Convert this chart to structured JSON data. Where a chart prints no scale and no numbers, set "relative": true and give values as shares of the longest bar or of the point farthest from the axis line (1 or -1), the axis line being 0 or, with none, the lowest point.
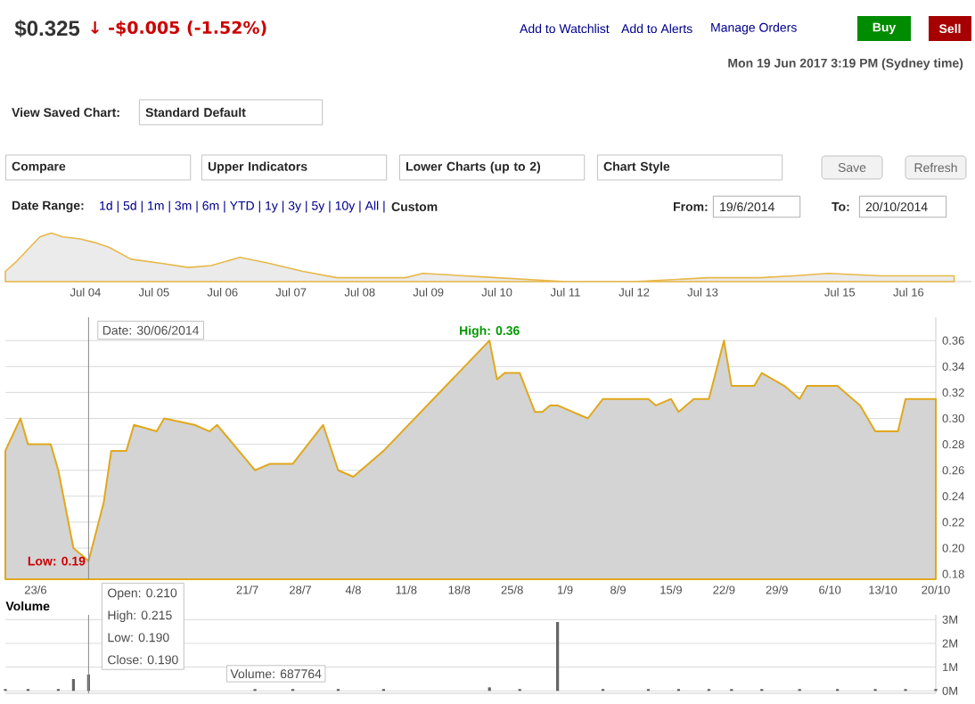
{
  "chart_data": [
    {
      "type": "area",
      "title": "$0.325",
      "subtitle": "↓ -$0.005 (-1.52%)",
      "relative": true,
      "color": "#e8b84a",
      "x": [
        "2003-05",
        "2003-07",
        "2003-11",
        "2004-01",
        "2004-03",
        "2004-06",
        "2004-09",
        "2004-11",
        "2005-03",
        "2005-08",
        "2006-01",
        "2006-05",
        "2006-10",
        "2007-03",
        "2007-09",
        "2008-03",
        "2009-03",
        "2009-06",
        "2010-07",
        "2011-07",
        "2012-07",
        "2013-08",
        "2014-05",
        "2014-11",
        "2015-05",
        "2016-02",
        "2017-03"
      ],
      "values": [
        0.21,
        0.42,
        0.92,
        1,
        0.92,
        0.88,
        0.79,
        0.71,
        0.46,
        0.38,
        0.29,
        0.33,
        0.5,
        0.38,
        0.21,
        0.08,
        0.08,
        0.17,
        0.08,
        0,
        0,
        0.08,
        0.08,
        0.12,
        0.17,
        0.12,
        0.12
      ],
      "xlim": [
        "2003-05",
        "2017-06"
      ],
      "xticks": [
        {
          "value": "2004-07",
          "label": "Jul 04"
        },
        {
          "value": "2005-07",
          "label": "Jul 05"
        },
        {
          "value": "2006-07",
          "label": "Jul 06"
        },
        {
          "value": "2007-07",
          "label": "Jul 07"
        },
        {
          "value": "2008-07",
          "label": "Jul 08"
        },
        {
          "value": "2009-07",
          "label": "Jul 09"
        },
        {
          "value": "2010-07",
          "label": "Jul 10"
        },
        {
          "value": "2011-07",
          "label": "Jul 11"
        },
        {
          "value": "2012-07",
          "label": "Jul 12"
        },
        {
          "value": "2013-07",
          "label": "Jul 13"
        },
        {
          "value": "2015-07",
          "label": "Jul 15"
        },
        {
          "value": "2016-07",
          "label": "Jul 16"
        }
      ],
      "annotations": [
        "Add to Watchlist",
        "Add to Alerts",
        "Manage Orders",
        "Buy",
        "Sell",
        "Mon 19 Jun 2017 3:19 PM (Sydney time)",
        "View Saved Chart:",
        "Standard Default",
        "Compare",
        "Upper Indicators",
        "Lower Charts (up to 2)",
        "Chart Style",
        "Save",
        "Refresh",
        "Date Range:",
        "1d | 5d | 1m | 3m | 6m | YTD | 1y | 3y | 5y | 10y | All |",
        "Custom",
        "From:",
        "19/6/2014",
        "To:",
        "20/10/2014"
      ]
    },
    {
      "type": "area",
      "color": "#e0a81c",
      "grid": "y",
      "x": [
        "2014-06-19",
        "2014-06-21",
        "2014-06-22",
        "2014-06-25",
        "2014-06-26",
        "2014-06-28",
        "2014-06-30",
        "2014-07-02",
        "2014-07-03",
        "2014-07-05",
        "2014-07-06",
        "2014-07-09",
        "2014-07-10",
        "2014-07-14",
        "2014-07-16",
        "2014-07-17",
        "2014-07-22",
        "2014-07-24",
        "2014-07-27",
        "2014-07-31",
        "2014-08-02",
        "2014-08-04",
        "2014-08-08",
        "2014-08-22",
        "2014-08-23",
        "2014-08-24",
        "2014-08-26",
        "2014-08-28",
        "2014-08-29",
        "2014-08-30",
        "2014-08-31",
        "2014-09-04",
        "2014-09-06",
        "2014-09-12",
        "2014-09-13",
        "2014-09-15",
        "2014-09-16",
        "2014-09-18",
        "2014-09-20",
        "2014-09-22",
        "2014-09-23",
        "2014-09-26",
        "2014-09-27",
        "2014-09-30",
        "2014-10-02",
        "2014-10-03",
        "2014-10-07",
        "2014-10-09",
        "2014-10-10",
        "2014-10-12",
        "2014-10-15",
        "2014-10-16",
        "2014-10-20"
      ],
      "values": [
        0.275,
        0.3,
        0.28,
        0.28,
        0.26,
        0.2,
        0.19,
        0.235,
        0.275,
        0.275,
        0.295,
        0.29,
        0.3,
        0.295,
        0.29,
        0.295,
        0.26,
        0.265,
        0.265,
        0.295,
        0.26,
        0.255,
        0.275,
        0.36,
        0.33,
        0.335,
        0.335,
        0.305,
        0.305,
        0.31,
        0.31,
        0.3,
        0.315,
        0.315,
        0.31,
        0.315,
        0.305,
        0.315,
        0.315,
        0.36,
        0.325,
        0.325,
        0.335,
        0.325,
        0.315,
        0.325,
        0.325,
        0.315,
        0.31,
        0.29,
        0.29,
        0.315,
        0.315
      ],
      "xlim": [
        "2014-06-19",
        "2014-10-20"
      ],
      "xticks": [
        {
          "value": "2014-06-23",
          "label": "23/6"
        },
        {
          "value": "2014-06-30",
          "label": null
        },
        {
          "value": "2014-07-21",
          "label": "21/7"
        },
        {
          "value": "2014-07-28",
          "label": "28/7"
        },
        {
          "value": "2014-08-04",
          "label": "4/8"
        },
        {
          "value": "2014-08-11",
          "label": "11/8"
        },
        {
          "value": "2014-08-18",
          "label": "18/8"
        },
        {
          "value": "2014-08-25",
          "label": "25/8"
        },
        {
          "value": "2014-09-01",
          "label": "1/9"
        },
        {
          "value": "2014-09-08",
          "label": "8/9"
        },
        {
          "value": "2014-09-15",
          "label": "15/9"
        },
        {
          "value": "2014-09-22",
          "label": "22/9"
        },
        {
          "value": "2014-09-29",
          "label": "29/9"
        },
        {
          "value": "2014-10-06",
          "label": "6/10"
        },
        {
          "value": "2014-10-13",
          "label": "13/10"
        },
        {
          "value": "2014-10-20",
          "label": "20/10"
        }
      ],
      "ylim": [
        0.176,
        0.378
      ],
      "yticks": [
        {
          "value": 0.18,
          "label": "0.18"
        },
        {
          "value": 0.2,
          "label": "0.20"
        },
        {
          "value": 0.22,
          "label": "0.22"
        },
        {
          "value": 0.24,
          "label": "0.24"
        },
        {
          "value": 0.26,
          "label": "0.26"
        },
        {
          "value": 0.28,
          "label": "0.28"
        },
        {
          "value": 0.3,
          "label": "0.30"
        },
        {
          "value": 0.32,
          "label": "0.32"
        },
        {
          "value": 0.34,
          "label": "0.34"
        },
        {
          "value": 0.36,
          "label": "0.36"
        }
      ],
      "ref_lines": [
        {
          "axis": "x",
          "value": "2014-06-30",
          "color": "#888888"
        }
      ],
      "annotations": [
        {
          "text": "Date: 30/06/2014",
          "x": "2014-06-30"
        },
        {
          "text": "High: 0.36",
          "x": "2014-08-22",
          "y": 0.36
        },
        {
          "text": "Low: 0.19",
          "x": "2014-06-30",
          "y": 0.19
        },
        "Open: 0.210",
        "High: 0.215",
        "Low: 0.190",
        "Close: 0.190"
      ]
    },
    {
      "type": "bar",
      "title": "Volume",
      "color": "#666666",
      "grid": "y",
      "tick_labels": "y",
      "x": [
        "2014-06-19",
        "2014-06-22",
        "2014-06-26",
        "2014-06-28",
        "2014-06-30",
        "2014-07-03",
        "2014-07-09",
        "2014-07-14",
        "2014-07-17",
        "2014-07-22",
        "2014-07-27",
        "2014-08-02",
        "2014-08-08",
        "2014-08-22",
        "2014-08-26",
        "2014-08-31",
        "2014-09-06",
        "2014-09-12",
        "2014-09-16",
        "2014-09-20",
        "2014-09-23",
        "2014-09-27",
        "2014-10-02",
        "2014-10-07",
        "2014-10-12",
        "2014-10-16",
        "2014-10-20"
      ],
      "values": [
        0.08,
        0.08,
        0.08,
        0.5,
        0.69,
        null,
        null,
        null,
        null,
        0.08,
        0.08,
        0.08,
        0.08,
        0.15,
        0.08,
        2.9,
        0.08,
        0.08,
        0.08,
        0.08,
        0.08,
        0.08,
        0.08,
        0.08,
        0.08,
        0.08,
        0.08
      ],
      "xlim": [
        "2014-06-19",
        "2014-10-20"
      ],
      "ylim": [
        -0.1,
        3.2
      ],
      "yticks": [
        {
          "value": 0,
          "label": "0M"
        },
        {
          "value": 1,
          "label": "1M"
        },
        {
          "value": 2,
          "label": "2M"
        },
        {
          "value": 3,
          "label": "3M"
        }
      ],
      "ref_lines": [
        {
          "axis": "x",
          "value": "2014-06-30",
          "color": "#888888"
        }
      ],
      "annotations": [
        "Volume: 687764"
      ]
    }
  ]
}
